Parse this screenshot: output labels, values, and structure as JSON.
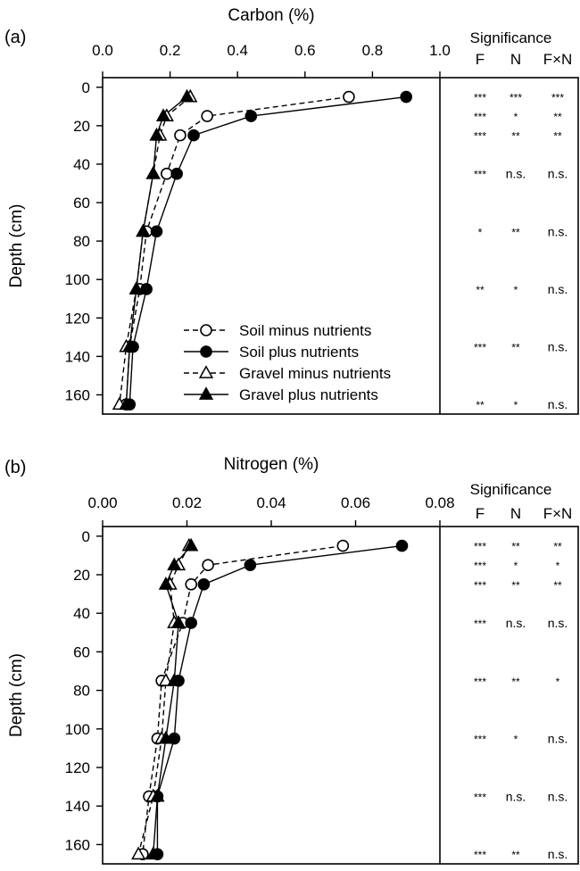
{
  "figure": {
    "panels": [
      {
        "panel_label": "(a)",
        "significance": {
          "title": "Significance",
          "columns": [
            "F",
            "N",
            "F×N"
          ],
          "rows": [
            {
              "depth": 5,
              "F": "***",
              "N": "***",
              "FxN": "***"
            },
            {
              "depth": 15,
              "F": "***",
              "N": "*",
              "FxN": "**"
            },
            {
              "depth": 25,
              "F": "***",
              "N": "**",
              "FxN": "**"
            },
            {
              "depth": 45,
              "F": "***",
              "N": "n.s.",
              "FxN": "n.s."
            },
            {
              "depth": 75,
              "F": "*",
              "N": "**",
              "FxN": "n.s."
            },
            {
              "depth": 105,
              "F": "**",
              "N": "*",
              "FxN": "n.s."
            },
            {
              "depth": 135,
              "F": "***",
              "N": "**",
              "FxN": "n.s."
            },
            {
              "depth": 165,
              "F": "**",
              "N": "*",
              "FxN": "n.s."
            }
          ]
        }
      },
      {
        "panel_label": "(b)",
        "significance": {
          "title": "Significance",
          "columns": [
            "F",
            "N",
            "F×N"
          ],
          "rows": [
            {
              "depth": 5,
              "F": "***",
              "N": "**",
              "FxN": "**"
            },
            {
              "depth": 15,
              "F": "***",
              "N": "*",
              "FxN": "*"
            },
            {
              "depth": 25,
              "F": "***",
              "N": "**",
              "FxN": "**"
            },
            {
              "depth": 45,
              "F": "***",
              "N": "n.s.",
              "FxN": "n.s."
            },
            {
              "depth": 75,
              "F": "***",
              "N": "**",
              "FxN": "*"
            },
            {
              "depth": 105,
              "F": "***",
              "N": "*",
              "FxN": "n.s."
            },
            {
              "depth": 135,
              "F": "***",
              "N": "n.s.",
              "FxN": "n.s."
            },
            {
              "depth": 165,
              "F": "***",
              "N": "**",
              "FxN": "n.s."
            }
          ]
        }
      }
    ]
  },
  "chart_data": [
    {
      "type": "line",
      "title": "",
      "xlabel": "Carbon (%)",
      "ylabel": "Depth (cm)",
      "xlim": [
        0,
        1.0
      ],
      "ylim": [
        170,
        -5
      ],
      "x_ticks": [
        "0.0",
        "0.2",
        "0.4",
        "0.6",
        "0.8",
        "1.0"
      ],
      "x_tick_values": [
        0,
        0.2,
        0.4,
        0.6,
        0.8,
        1.0
      ],
      "y_ticks": [
        "0",
        "20",
        "40",
        "60",
        "80",
        "100",
        "120",
        "140",
        "160"
      ],
      "y_tick_values": [
        0,
        20,
        40,
        60,
        80,
        100,
        120,
        140,
        160
      ],
      "x_axis_position": "top",
      "y_axis_inverted": true,
      "grid": false,
      "legend_position": "bottom-left",
      "depths": [
        5,
        15,
        25,
        45,
        75,
        105,
        135,
        165
      ],
      "series": [
        {
          "name": "Soil minus nutrients",
          "marker": "circle-open",
          "line": "dashed",
          "values": [
            0.73,
            0.31,
            0.23,
            0.19,
            0.13,
            0.11,
            0.08,
            0.07
          ]
        },
        {
          "name": "Soil plus nutrients",
          "marker": "circle-filled",
          "line": "solid",
          "values": [
            0.9,
            0.44,
            0.27,
            0.22,
            0.16,
            0.13,
            0.09,
            0.08
          ]
        },
        {
          "name": "Gravel minus nutrients",
          "marker": "triangle-open",
          "line": "dashed",
          "values": [
            0.26,
            0.19,
            0.17,
            0.15,
            0.12,
            0.1,
            0.07,
            0.05
          ]
        },
        {
          "name": "Gravel plus nutrients",
          "marker": "triangle-filled",
          "line": "solid",
          "values": [
            0.25,
            0.18,
            0.16,
            0.15,
            0.12,
            0.1,
            0.08,
            0.07
          ]
        }
      ]
    },
    {
      "type": "line",
      "title": "",
      "xlabel": "Nitrogen (%)",
      "ylabel": "Depth (cm)",
      "xlim": [
        0,
        0.08
      ],
      "ylim": [
        170,
        -5
      ],
      "x_ticks": [
        "0.00",
        "0.02",
        "0.04",
        "0.06",
        "0.08"
      ],
      "x_tick_values": [
        0,
        0.02,
        0.04,
        0.06,
        0.08
      ],
      "y_ticks": [
        "0",
        "20",
        "40",
        "60",
        "80",
        "100",
        "120",
        "140",
        "160"
      ],
      "y_tick_values": [
        0,
        20,
        40,
        60,
        80,
        100,
        120,
        140,
        160
      ],
      "x_axis_position": "top",
      "y_axis_inverted": true,
      "grid": false,
      "legend_position": "none",
      "depths": [
        5,
        15,
        25,
        45,
        75,
        105,
        135,
        165
      ],
      "series": [
        {
          "name": "Soil minus nutrients",
          "marker": "circle-open",
          "line": "dashed",
          "values": [
            0.057,
            0.025,
            0.021,
            0.019,
            0.014,
            0.013,
            0.011,
            0.0095
          ]
        },
        {
          "name": "Soil plus nutrients",
          "marker": "circle-filled",
          "line": "solid",
          "values": [
            0.071,
            0.035,
            0.024,
            0.021,
            0.018,
            0.017,
            0.013,
            0.013
          ]
        },
        {
          "name": "Gravel minus nutrients",
          "marker": "triangle-open",
          "line": "dashed",
          "values": [
            0.0205,
            0.018,
            0.016,
            0.017,
            0.015,
            0.014,
            0.012,
            0.0085
          ]
        },
        {
          "name": "Gravel plus nutrients",
          "marker": "triangle-filled",
          "line": "solid",
          "values": [
            0.021,
            0.017,
            0.015,
            0.018,
            0.017,
            0.015,
            0.013,
            0.012
          ]
        }
      ]
    }
  ]
}
